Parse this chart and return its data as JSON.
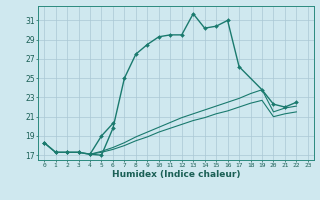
{
  "title": "",
  "xlabel": "Humidex (Indice chaleur)",
  "bg_color": "#cfe8ef",
  "grid_color": "#aac8d4",
  "line_color": "#1a7a6e",
  "xlim": [
    -0.5,
    23.5
  ],
  "ylim": [
    16.5,
    32.5
  ],
  "yticks": [
    17,
    19,
    21,
    23,
    25,
    27,
    29,
    31
  ],
  "xticks": [
    0,
    1,
    2,
    3,
    4,
    5,
    6,
    7,
    8,
    9,
    10,
    11,
    12,
    13,
    14,
    15,
    16,
    17,
    18,
    19,
    20,
    21,
    22,
    23
  ],
  "line1_x": [
    0,
    1,
    2,
    3,
    4,
    5,
    6,
    7,
    8,
    9,
    10,
    11,
    12,
    13,
    14,
    15,
    16,
    17,
    19,
    20,
    21,
    22
  ],
  "line1_y": [
    18.3,
    17.3,
    17.3,
    17.3,
    17.1,
    17.0,
    19.8,
    25.0,
    27.5,
    28.5,
    29.3,
    29.5,
    29.5,
    31.7,
    30.2,
    30.4,
    31.0,
    26.2,
    23.8,
    22.3,
    22.0,
    22.5
  ],
  "line2_x": [
    0,
    1,
    2,
    3,
    4,
    5,
    6
  ],
  "line2_y": [
    18.3,
    17.3,
    17.3,
    17.3,
    17.1,
    19.0,
    20.3
  ],
  "line3_x": [
    4,
    5,
    6,
    7,
    8,
    9,
    10,
    11,
    12,
    13,
    14,
    15,
    16,
    17,
    18,
    19,
    20,
    21,
    22
  ],
  "line3_y": [
    17.1,
    17.4,
    17.8,
    18.3,
    18.9,
    19.4,
    19.9,
    20.4,
    20.9,
    21.3,
    21.7,
    22.1,
    22.5,
    22.9,
    23.4,
    23.8,
    21.5,
    21.9,
    22.1
  ],
  "line4_x": [
    4,
    5,
    6,
    7,
    8,
    9,
    10,
    11,
    12,
    13,
    14,
    15,
    16,
    17,
    18,
    19,
    20,
    21,
    22
  ],
  "line4_y": [
    17.1,
    17.3,
    17.6,
    18.0,
    18.5,
    18.9,
    19.4,
    19.8,
    20.2,
    20.6,
    20.9,
    21.3,
    21.6,
    22.0,
    22.4,
    22.7,
    21.0,
    21.3,
    21.5
  ]
}
